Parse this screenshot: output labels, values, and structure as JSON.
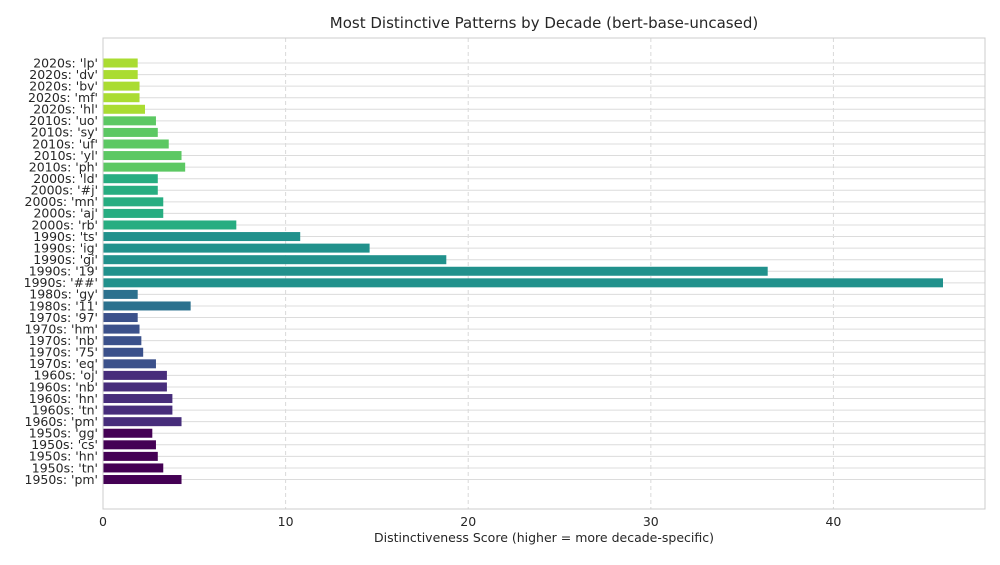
{
  "chart_data": {
    "type": "bar",
    "orientation": "horizontal",
    "title": "Most Distinctive Patterns by Decade (bert-base-uncased)",
    "xlabel": "Distinctiveness Score (higher = more decade-specific)",
    "ylabel": "",
    "xlim": [
      0,
      48.3
    ],
    "xticks": [
      0,
      10,
      20,
      30,
      40
    ],
    "grid": "x, dashed",
    "legend": "none",
    "decade_colors": {
      "1950s": "#440154",
      "1960s": "#472d7b",
      "1970s": "#3b518b",
      "1980s": "#2c718e",
      "1990s": "#21918c",
      "2000s": "#27ad81",
      "2010s": "#5cc863",
      "2020s": "#aadc32"
    },
    "bars": [
      {
        "label": "2020s: 'lp'",
        "decade": "2020s",
        "value": 1.9
      },
      {
        "label": "2020s: 'dv'",
        "decade": "2020s",
        "value": 1.9
      },
      {
        "label": "2020s: 'bv'",
        "decade": "2020s",
        "value": 2.0
      },
      {
        "label": "2020s: 'mf'",
        "decade": "2020s",
        "value": 2.0
      },
      {
        "label": "2020s: 'hl'",
        "decade": "2020s",
        "value": 2.3
      },
      {
        "label": "2010s: 'uo'",
        "decade": "2010s",
        "value": 2.9
      },
      {
        "label": "2010s: 'sy'",
        "decade": "2010s",
        "value": 3.0
      },
      {
        "label": "2010s: 'uf'",
        "decade": "2010s",
        "value": 3.6
      },
      {
        "label": "2010s: 'yl'",
        "decade": "2010s",
        "value": 4.3
      },
      {
        "label": "2010s: 'ph'",
        "decade": "2010s",
        "value": 4.5
      },
      {
        "label": "2000s: 'ld'",
        "decade": "2000s",
        "value": 3.0
      },
      {
        "label": "2000s: '#j'",
        "decade": "2000s",
        "value": 3.0
      },
      {
        "label": "2000s: 'mn'",
        "decade": "2000s",
        "value": 3.3
      },
      {
        "label": "2000s: 'aj'",
        "decade": "2000s",
        "value": 3.3
      },
      {
        "label": "2000s: 'rb'",
        "decade": "2000s",
        "value": 7.3
      },
      {
        "label": "1990s: 'ts'",
        "decade": "1990s",
        "value": 10.8
      },
      {
        "label": "1990s: 'ig'",
        "decade": "1990s",
        "value": 14.6
      },
      {
        "label": "1990s: 'gi'",
        "decade": "1990s",
        "value": 18.8
      },
      {
        "label": "1990s: '19'",
        "decade": "1990s",
        "value": 36.4
      },
      {
        "label": "1990s: '##'",
        "decade": "1990s",
        "value": 46.0
      },
      {
        "label": "1980s: 'gy'",
        "decade": "1980s",
        "value": 1.9
      },
      {
        "label": "1980s: '11'",
        "decade": "1980s",
        "value": 4.8
      },
      {
        "label": "1970s: '97'",
        "decade": "1970s",
        "value": 1.9
      },
      {
        "label": "1970s: 'hm'",
        "decade": "1970s",
        "value": 2.0
      },
      {
        "label": "1970s: 'nb'",
        "decade": "1970s",
        "value": 2.1
      },
      {
        "label": "1970s: '75'",
        "decade": "1970s",
        "value": 2.2
      },
      {
        "label": "1970s: 'eq'",
        "decade": "1970s",
        "value": 2.9
      },
      {
        "label": "1960s: 'oj'",
        "decade": "1960s",
        "value": 3.5
      },
      {
        "label": "1960s: 'nb'",
        "decade": "1960s",
        "value": 3.5
      },
      {
        "label": "1960s: 'hn'",
        "decade": "1960s",
        "value": 3.8
      },
      {
        "label": "1960s: 'tn'",
        "decade": "1960s",
        "value": 3.8
      },
      {
        "label": "1960s: 'pm'",
        "decade": "1960s",
        "value": 4.3
      },
      {
        "label": "1950s: 'gg'",
        "decade": "1950s",
        "value": 2.7
      },
      {
        "label": "1950s: 'cs'",
        "decade": "1950s",
        "value": 2.9
      },
      {
        "label": "1950s: 'hn'",
        "decade": "1950s",
        "value": 3.0
      },
      {
        "label": "1950s: 'tn'",
        "decade": "1950s",
        "value": 3.3
      },
      {
        "label": "1950s: 'pm'",
        "decade": "1950s",
        "value": 4.3
      }
    ]
  }
}
